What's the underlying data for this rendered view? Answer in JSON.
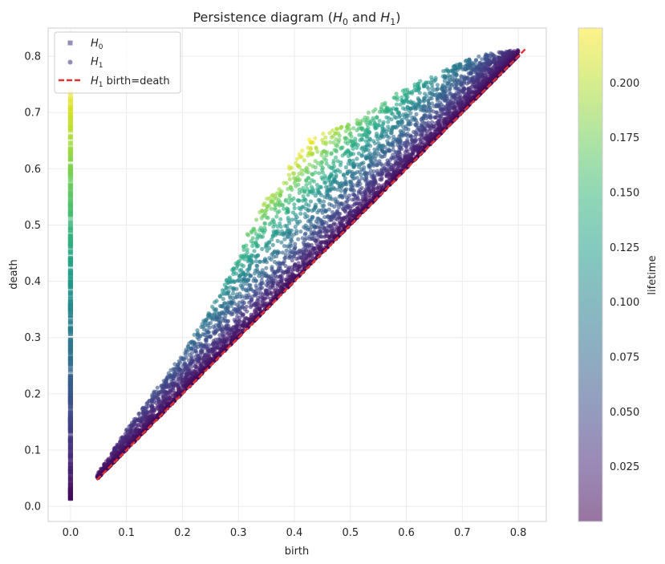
{
  "chart_data": {
    "type": "scatter",
    "title": "Persistence diagram (H0 and H1)",
    "title_parts": {
      "prefix": "Persistence diagram (",
      "h": "H",
      "s0": "0",
      "and": " and ",
      "s1": "1",
      "suffix": ")"
    },
    "xlabel": "birth",
    "ylabel": "death",
    "xlim": [
      -0.04,
      0.85
    ],
    "ylim": [
      -0.027,
      0.85
    ],
    "xticks": [
      0.0,
      0.1,
      0.2,
      0.3,
      0.4,
      0.5,
      0.6,
      0.7,
      0.8
    ],
    "yticks": [
      0.0,
      0.1,
      0.2,
      0.3,
      0.4,
      0.5,
      0.6,
      0.7,
      0.8
    ],
    "grid": true,
    "legend_position": "top-left",
    "legend": [
      {
        "label": "H0",
        "main": "H",
        "sub": "0",
        "marker": "square",
        "color": "#3f2f78"
      },
      {
        "label": "H1",
        "main": "H",
        "sub": "1",
        "marker": "circle",
        "color": "#3f2f78"
      },
      {
        "label": "H1 birth=death",
        "main": "H",
        "sub": "1",
        "rest": " birth=death",
        "marker": "dashed-line",
        "color": "#e03232"
      }
    ],
    "series": [
      {
        "name": "H0",
        "marker": "square",
        "birth": 0.0,
        "death_range": [
          0.013,
          0.74
        ]
      },
      {
        "name": "H1",
        "marker": "circle",
        "birth_range": [
          0.047,
          0.8
        ],
        "death_range": [
          0.048,
          0.813
        ],
        "envelope_upper": [
          [
            0.05,
            0.06
          ],
          [
            0.1,
            0.135
          ],
          [
            0.15,
            0.205
          ],
          [
            0.2,
            0.27
          ],
          [
            0.25,
            0.35
          ],
          [
            0.3,
            0.44
          ],
          [
            0.33,
            0.52
          ],
          [
            0.37,
            0.57
          ],
          [
            0.42,
            0.65
          ],
          [
            0.5,
            0.68
          ],
          [
            0.55,
            0.71
          ],
          [
            0.6,
            0.745
          ],
          [
            0.65,
            0.765
          ],
          [
            0.7,
            0.79
          ],
          [
            0.75,
            0.805
          ],
          [
            0.8,
            0.81
          ]
        ]
      },
      {
        "name": "H1 birth=death",
        "type": "line",
        "style": "dashed",
        "color": "#e03232",
        "points": [
          [
            0.047,
            0.047
          ],
          [
            0.813,
            0.813
          ]
        ]
      }
    ],
    "colorbar": {
      "label": "lifetime",
      "colormap": "viridis",
      "range": [
        0.0,
        0.225
      ],
      "ticks": [
        0.025,
        0.05,
        0.075,
        0.1,
        0.125,
        0.15,
        0.175,
        0.2
      ],
      "tick_labels": [
        "0.025",
        "0.050",
        "0.075",
        "0.100",
        "0.125",
        "0.150",
        "0.175",
        "0.200"
      ]
    },
    "colors": {
      "viridis": [
        "#440154",
        "#482878",
        "#3e4989",
        "#31688e",
        "#26828e",
        "#1f9e89",
        "#35b779",
        "#6ece58",
        "#b5de2b",
        "#fde725"
      ],
      "grid": "#ebebeb",
      "spine": "#cccccc",
      "diagonal": "#1a1a1a"
    }
  }
}
